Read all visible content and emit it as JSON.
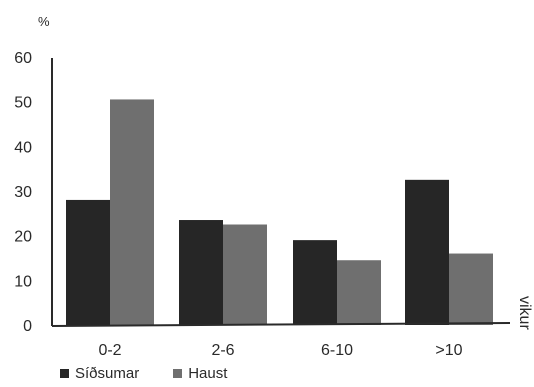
{
  "chart_data": {
    "type": "bar",
    "title": "",
    "ylabel": "%",
    "xlabel": "vikur",
    "ylim": [
      0,
      60
    ],
    "yticks": [
      0,
      10,
      20,
      30,
      40,
      50,
      60
    ],
    "categories": [
      "0-2",
      "2-6",
      "6-10",
      ">10"
    ],
    "series": [
      {
        "name": "Síðsumar",
        "values": [
          28,
          23.5,
          19,
          32.5
        ],
        "color": "#262626"
      },
      {
        "name": "Haust",
        "values": [
          50.5,
          22.5,
          14.5,
          16
        ],
        "color": "#6f6f6f"
      }
    ],
    "grid": false,
    "legend_position": "bottom-left"
  }
}
